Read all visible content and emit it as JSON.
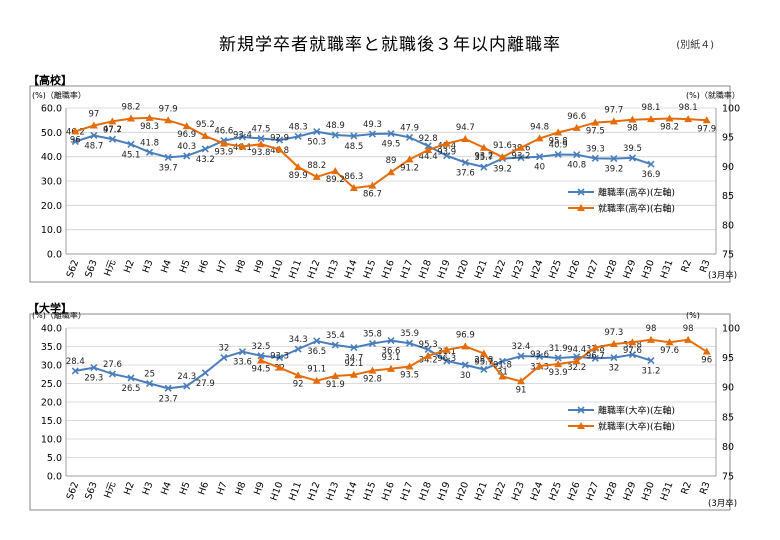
{
  "page": {
    "title": "新規学卒者就職率と就職後３年以内離職率",
    "note": "(別紙４)"
  },
  "x_categories": [
    "S62",
    "S63",
    "H元",
    "H2",
    "H3",
    "H4",
    "H5",
    "H6",
    "H7",
    "H8",
    "H9",
    "H10",
    "H11",
    "H12",
    "H13",
    "H14",
    "H15",
    "H16",
    "H17",
    "H18",
    "H19",
    "H20",
    "H21",
    "H22",
    "H23",
    "H24",
    "H25",
    "H26",
    "H27",
    "H28",
    "H29",
    "H30",
    "H31",
    "R2",
    "R3"
  ],
  "chart_data": [
    {
      "section": "【高校】",
      "type": "line",
      "left_axis": {
        "label": "(%)（離職率）",
        "ylim": [
          0,
          60
        ],
        "ticks": [
          "0.0",
          "10.0",
          "20.0",
          "30.0",
          "40.0",
          "50.0",
          "60.0"
        ]
      },
      "right_axis": {
        "label": "(%)（就職率）",
        "ylim": [
          75,
          100
        ],
        "ticks": [
          "75",
          "80",
          "85",
          "90",
          "95",
          "100"
        ]
      },
      "x_end_label": "(3月卒)",
      "legend_position": "right",
      "colors": {
        "separation": "#4a7ebb",
        "employment": "#e46c0a"
      },
      "series": [
        {
          "name": "離職率(高卒)(左軸)",
          "axis": "left",
          "values": [
            46.2,
            48.7,
            47.2,
            45.1,
            41.8,
            39.7,
            40.3,
            43.2,
            46.6,
            48.1,
            47.5,
            46.8,
            48.3,
            50.3,
            48.9,
            48.5,
            49.3,
            49.5,
            47.9,
            44.4,
            40.4,
            37.6,
            35.7,
            39.2,
            39.6,
            40.0,
            40.9,
            40.8,
            39.3,
            39.2,
            39.5,
            36.9,
            null,
            null,
            null
          ]
        },
        {
          "name": "就職率(高卒)(右軸)",
          "axis": "right",
          "values": [
            96.0,
            97.0,
            97.7,
            98.2,
            98.3,
            97.9,
            96.9,
            95.2,
            93.9,
            93.4,
            93.8,
            92.9,
            89.9,
            88.2,
            89.2,
            86.3,
            86.7,
            89.0,
            91.2,
            92.8,
            93.9,
            94.7,
            93.2,
            91.6,
            93.2,
            94.8,
            95.8,
            96.6,
            97.5,
            97.7,
            98.0,
            98.1,
            98.2,
            98.1,
            97.9
          ]
        }
      ]
    },
    {
      "section": "【大学】",
      "type": "line",
      "left_axis": {
        "label": "(%)（離職率）",
        "ylim": [
          0,
          40
        ],
        "ticks": [
          "0.0",
          "5.0",
          "10.0",
          "15.0",
          "20.0",
          "25.0",
          "30.0",
          "35.0",
          "40.0"
        ]
      },
      "right_axis": {
        "label": "(%)",
        "ylim": [
          75,
          100
        ],
        "ticks": [
          "75",
          "80",
          "85",
          "90",
          "95",
          "100"
        ]
      },
      "x_end_label": "(3月卒)",
      "legend_position": "right",
      "colors": {
        "separation": "#4a7ebb",
        "employment": "#e46c0a"
      },
      "series": [
        {
          "name": "離職率(大卒)(左軸)",
          "axis": "left",
          "values": [
            28.4,
            29.3,
            27.6,
            26.5,
            25.0,
            23.7,
            24.3,
            27.9,
            32.0,
            33.6,
            32.5,
            32.0,
            34.3,
            36.5,
            35.4,
            34.7,
            35.8,
            36.6,
            35.9,
            34.2,
            31.1,
            30.0,
            28.8,
            31.0,
            32.4,
            32.3,
            31.9,
            32.2,
            31.8,
            32.0,
            32.8,
            31.2,
            null,
            null,
            null
          ]
        },
        {
          "name": "就職率(大卒)(右軸)",
          "axis": "right",
          "values": [
            null,
            null,
            null,
            null,
            null,
            null,
            null,
            null,
            null,
            null,
            94.5,
            93.3,
            92.0,
            91.1,
            91.9,
            92.1,
            92.8,
            93.1,
            93.5,
            95.3,
            96.3,
            96.9,
            95.7,
            91.8,
            91.0,
            93.6,
            93.9,
            94.4,
            96.7,
            97.3,
            97.6,
            98.0,
            97.6,
            98.0,
            96.0
          ]
        }
      ]
    }
  ]
}
